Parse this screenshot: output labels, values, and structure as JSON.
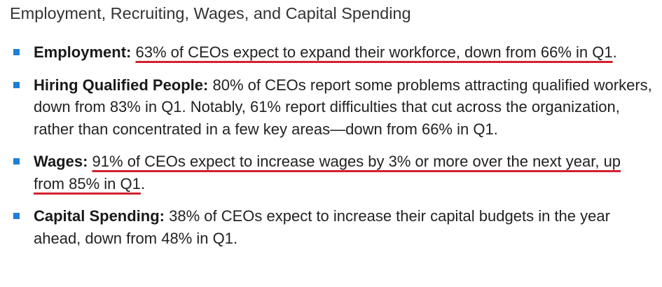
{
  "heading": "Employment, Recruiting, Wages, and Capital Spending",
  "accent_colors": {
    "bullet": "#1f7fd6",
    "underline": "#d3202f"
  },
  "bullets": [
    {
      "label": "Employment:",
      "text": "63% of CEOs expect to expand their workforce, down from 66% in Q1",
      "trailing": ".",
      "underlined": true
    },
    {
      "label": "Hiring Qualified People:",
      "text": "80% of CEOs report some problems attracting qualified workers, down from 83% in Q1. Notably, 61% report difficulties that cut across the organization, rather than concentrated in a few key areas—down from 66% in Q1.",
      "trailing": "",
      "underlined": false
    },
    {
      "label": "Wages:",
      "text": "91% of CEOs expect to increase wages by 3% or more over the next year, up from 85% in Q1",
      "trailing": ".",
      "underlined": true
    },
    {
      "label": "Capital Spending:",
      "text": "38% of CEOs expect to increase their capital budgets in the year ahead, down from 48% in Q1.",
      "trailing": "",
      "underlined": false
    }
  ]
}
